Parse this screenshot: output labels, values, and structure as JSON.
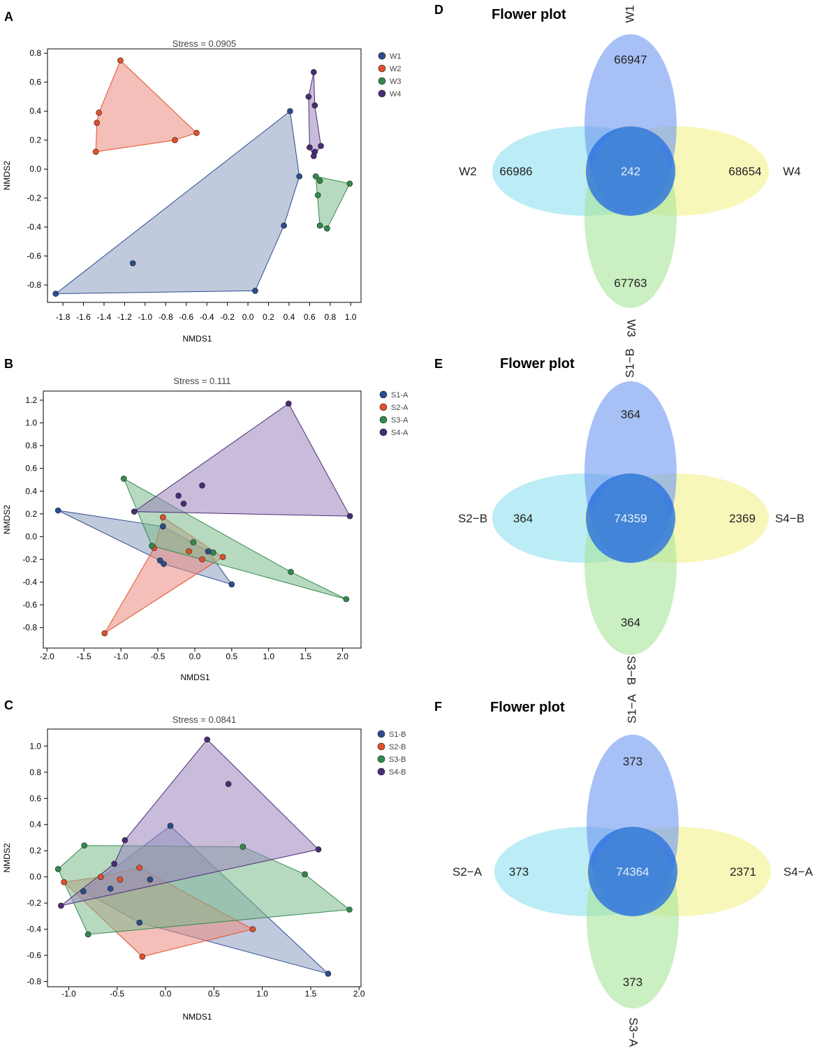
{
  "figure": {
    "panels": [
      "A",
      "B",
      "C",
      "D",
      "E",
      "F"
    ]
  },
  "chart_data": [
    {
      "type": "scatter",
      "panel": "A",
      "title": "Stress = 0.0905",
      "xlabel": "NMDS1",
      "ylabel": "NMDS2",
      "xlim": [
        -1.95,
        1.1
      ],
      "ylim": [
        -0.92,
        0.83
      ],
      "xticks": [
        -1.8,
        -1.6,
        -1.4,
        -1.2,
        -1.0,
        -0.8,
        -0.6,
        -0.4,
        -0.2,
        0.0,
        0.2,
        0.4,
        0.6,
        0.8,
        1.0
      ],
      "xtick_labels": [
        "-1.8",
        "-1.6",
        "-1.4",
        "-1.2",
        "-1.0",
        "-0.8",
        "-0.6",
        "-0.4",
        "-0.2",
        "0.0",
        "0.2",
        "0.4",
        "0.6",
        "0.8",
        "1.0"
      ],
      "yticks": [
        -0.8,
        -0.6,
        -0.4,
        -0.2,
        0.0,
        0.2,
        0.4,
        0.6,
        0.8
      ],
      "ytick_labels": [
        "-0.8",
        "-0.6",
        "-0.4",
        "-0.2",
        "0.0",
        "0.2",
        "0.4",
        "0.6",
        "0.8"
      ],
      "legend_position": "right",
      "series": [
        {
          "name": "W1",
          "color": "#2a4d8f",
          "fill": "#8e9cc1",
          "points": [
            [
              -1.87,
              -0.86
            ],
            [
              -1.12,
              -0.65
            ],
            [
              0.07,
              -0.84
            ],
            [
              0.35,
              -0.39
            ],
            [
              0.41,
              0.4
            ],
            [
              0.5,
              -0.05
            ]
          ],
          "hull": [
            [
              -1.87,
              -0.86
            ],
            [
              0.07,
              -0.84
            ],
            [
              0.35,
              -0.39
            ],
            [
              0.5,
              -0.05
            ],
            [
              0.41,
              0.4
            ]
          ]
        },
        {
          "name": "W2",
          "color": "#e4502a",
          "fill": "#e98b7e",
          "points": [
            [
              -1.24,
              0.75
            ],
            [
              -1.45,
              0.39
            ],
            [
              -1.47,
              0.32
            ],
            [
              -1.48,
              0.12
            ],
            [
              -0.71,
              0.2
            ],
            [
              -0.5,
              0.25
            ]
          ],
          "hull": [
            [
              -1.24,
              0.75
            ],
            [
              -0.5,
              0.25
            ],
            [
              -0.71,
              0.2
            ],
            [
              -1.48,
              0.12
            ],
            [
              -1.47,
              0.32
            ],
            [
              -1.45,
              0.39
            ]
          ]
        },
        {
          "name": "W3",
          "color": "#338a4e",
          "fill": "#7cba8c",
          "points": [
            [
              0.66,
              -0.05
            ],
            [
              0.7,
              -0.08
            ],
            [
              0.99,
              -0.1
            ],
            [
              0.68,
              -0.18
            ],
            [
              0.7,
              -0.39
            ],
            [
              0.77,
              -0.41
            ]
          ],
          "hull": [
            [
              0.66,
              -0.05
            ],
            [
              0.99,
              -0.1
            ],
            [
              0.77,
              -0.41
            ],
            [
              0.7,
              -0.39
            ]
          ]
        },
        {
          "name": "W4",
          "color": "#4a2c77",
          "fill": "#9a85bc",
          "points": [
            [
              0.64,
              0.67
            ],
            [
              0.59,
              0.5
            ],
            [
              0.65,
              0.44
            ],
            [
              0.6,
              0.15
            ],
            [
              0.71,
              0.16
            ],
            [
              0.65,
              0.12
            ],
            [
              0.64,
              0.09
            ]
          ],
          "hull": [
            [
              0.64,
              0.67
            ],
            [
              0.65,
              0.44
            ],
            [
              0.71,
              0.16
            ],
            [
              0.64,
              0.09
            ],
            [
              0.6,
              0.15
            ],
            [
              0.59,
              0.5
            ]
          ]
        }
      ]
    },
    {
      "type": "scatter",
      "panel": "B",
      "title": "Stress = 0.111",
      "xlabel": "NMDS1",
      "ylabel": "NMDS2",
      "xlim": [
        -2.05,
        2.25
      ],
      "ylim": [
        -0.98,
        1.28
      ],
      "xticks": [
        -2.0,
        -1.5,
        -1.0,
        -0.5,
        0.0,
        0.5,
        1.0,
        1.5,
        2.0
      ],
      "xtick_labels": [
        "-2.0",
        "-1.5",
        "-1.0",
        "-0.5",
        "0.0",
        "0.5",
        "1.0",
        "1.5",
        "2.0"
      ],
      "yticks": [
        -0.8,
        -0.6,
        -0.4,
        -0.2,
        0.0,
        0.2,
        0.4,
        0.6,
        0.8,
        1.0,
        1.2
      ],
      "ytick_labels": [
        "-0.8",
        "-0.6",
        "-0.4",
        "-0.2",
        "0.0",
        "0.2",
        "0.4",
        "0.6",
        "0.8",
        "1.0",
        "1.2"
      ],
      "legend_position": "right",
      "series": [
        {
          "name": "S1-A",
          "color": "#2a4d8f",
          "fill": "#8e9cc1",
          "points": [
            [
              -1.85,
              0.23
            ],
            [
              -0.43,
              0.09
            ],
            [
              0.18,
              -0.13
            ],
            [
              -0.47,
              -0.21
            ],
            [
              -0.42,
              -0.24
            ],
            [
              0.5,
              -0.42
            ]
          ],
          "hull": [
            [
              -1.85,
              0.23
            ],
            [
              -0.43,
              0.09
            ],
            [
              0.18,
              -0.13
            ],
            [
              0.5,
              -0.42
            ],
            [
              -0.42,
              -0.24
            ],
            [
              -0.47,
              -0.21
            ]
          ]
        },
        {
          "name": "S2-A",
          "color": "#e4502a",
          "fill": "#e98b7e",
          "points": [
            [
              -0.43,
              0.17
            ],
            [
              -0.55,
              -0.1
            ],
            [
              -0.08,
              -0.13
            ],
            [
              0.1,
              -0.2
            ],
            [
              0.38,
              -0.18
            ],
            [
              -1.22,
              -0.85
            ]
          ],
          "hull": [
            [
              -0.43,
              0.17
            ],
            [
              0.38,
              -0.18
            ],
            [
              -1.22,
              -0.85
            ],
            [
              -0.55,
              -0.1
            ]
          ]
        },
        {
          "name": "S3-A",
          "color": "#338a4e",
          "fill": "#7cba8c",
          "points": [
            [
              -0.96,
              0.51
            ],
            [
              -0.58,
              -0.08
            ],
            [
              -0.02,
              -0.05
            ],
            [
              0.25,
              -0.14
            ],
            [
              1.3,
              -0.31
            ],
            [
              2.05,
              -0.55
            ]
          ],
          "hull": [
            [
              -0.96,
              0.51
            ],
            [
              1.3,
              -0.31
            ],
            [
              2.05,
              -0.55
            ],
            [
              -0.58,
              -0.08
            ]
          ]
        },
        {
          "name": "S4-A",
          "color": "#4a2c77",
          "fill": "#9a85bc",
          "points": [
            [
              1.27,
              1.17
            ],
            [
              0.1,
              0.45
            ],
            [
              -0.22,
              0.36
            ],
            [
              -0.15,
              0.29
            ],
            [
              -0.82,
              0.22
            ],
            [
              2.1,
              0.18
            ]
          ],
          "hull": [
            [
              1.27,
              1.17
            ],
            [
              2.1,
              0.18
            ],
            [
              -0.82,
              0.22
            ]
          ]
        }
      ]
    },
    {
      "type": "scatter",
      "panel": "C",
      "title": "Stress = 0.0841",
      "xlabel": "NMDS1",
      "ylabel": "NMDS2",
      "xlim": [
        -1.22,
        2.02
      ],
      "ylim": [
        -0.84,
        1.13
      ],
      "xticks": [
        -1.0,
        -0.5,
        0.0,
        0.5,
        1.0,
        1.5,
        2.0
      ],
      "xtick_labels": [
        "-1.0",
        "-0.5",
        "0.0",
        "0.5",
        "1.0",
        "1.5",
        "2.0"
      ],
      "yticks": [
        -0.8,
        -0.6,
        -0.4,
        -0.2,
        0.0,
        0.2,
        0.4,
        0.6,
        0.8,
        1.0
      ],
      "ytick_labels": [
        "-0.8",
        "-0.6",
        "-0.4",
        "-0.2",
        "0.0",
        "0.2",
        "0.4",
        "0.6",
        "0.8",
        "1.0"
      ],
      "legend_position": "right",
      "series": [
        {
          "name": "S1-B",
          "color": "#2a4d8f",
          "fill": "#8e9cc1",
          "points": [
            [
              0.05,
              0.39
            ],
            [
              -0.16,
              -0.02
            ],
            [
              -0.57,
              -0.09
            ],
            [
              -0.85,
              -0.11
            ],
            [
              -0.27,
              -0.35
            ],
            [
              1.68,
              -0.74
            ]
          ],
          "hull": [
            [
              0.05,
              0.39
            ],
            [
              1.68,
              -0.74
            ],
            [
              -0.27,
              -0.35
            ],
            [
              -0.85,
              -0.11
            ]
          ]
        },
        {
          "name": "S2-B",
          "color": "#e4502a",
          "fill": "#e98b7e",
          "points": [
            [
              -0.67,
              0.0
            ],
            [
              -0.47,
              -0.02
            ],
            [
              -0.27,
              0.07
            ],
            [
              -1.05,
              -0.04
            ],
            [
              0.9,
              -0.4
            ],
            [
              -0.24,
              -0.61
            ]
          ],
          "hull": [
            [
              -1.05,
              -0.04
            ],
            [
              -0.67,
              0.0
            ],
            [
              -0.27,
              0.07
            ],
            [
              0.9,
              -0.4
            ],
            [
              -0.24,
              -0.61
            ]
          ]
        },
        {
          "name": "S3-B",
          "color": "#338a4e",
          "fill": "#7cba8c",
          "points": [
            [
              -0.84,
              0.24
            ],
            [
              0.8,
              0.23
            ],
            [
              1.44,
              0.02
            ],
            [
              -1.11,
              0.06
            ],
            [
              1.9,
              -0.25
            ],
            [
              -0.8,
              -0.44
            ]
          ],
          "hull": [
            [
              -0.84,
              0.24
            ],
            [
              0.8,
              0.23
            ],
            [
              1.44,
              0.02
            ],
            [
              1.9,
              -0.25
            ],
            [
              -0.8,
              -0.44
            ],
            [
              -1.11,
              0.06
            ]
          ]
        },
        {
          "name": "S4-B",
          "color": "#4a2c77",
          "fill": "#9a85bc",
          "points": [
            [
              0.43,
              1.05
            ],
            [
              0.65,
              0.71
            ],
            [
              -0.42,
              0.28
            ],
            [
              -0.53,
              0.1
            ],
            [
              1.58,
              0.21
            ],
            [
              -1.08,
              -0.22
            ]
          ],
          "hull": [
            [
              0.43,
              1.05
            ],
            [
              1.58,
              0.21
            ],
            [
              -1.08,
              -0.22
            ],
            [
              -0.53,
              0.1
            ],
            [
              -0.42,
              0.28
            ]
          ]
        }
      ]
    },
    {
      "type": "venn",
      "panel": "D",
      "title": "Flower plot",
      "petals": [
        {
          "name": "W1",
          "position": "top",
          "unique": "66947",
          "color": "#6d96f0"
        },
        {
          "name": "W2",
          "position": "left",
          "unique": "66986",
          "color": "#8fe0ef"
        },
        {
          "name": "W4",
          "position": "right",
          "unique": "68654",
          "color": "#f3f28c"
        },
        {
          "name": "W3",
          "position": "bottom",
          "unique": "67763",
          "color": "#a6e49a"
        }
      ],
      "core": "242",
      "core_color": "#2b70e0"
    },
    {
      "type": "venn",
      "panel": "E",
      "title": "Flower plot",
      "petals": [
        {
          "name": "S1−B",
          "position": "top",
          "unique": "364",
          "color": "#6d96f0"
        },
        {
          "name": "S2−B",
          "position": "left",
          "unique": "364",
          "color": "#8fe0ef"
        },
        {
          "name": "S4−B",
          "position": "right",
          "unique": "2369",
          "color": "#f3f28c"
        },
        {
          "name": "S3−B",
          "position": "bottom",
          "unique": "364",
          "color": "#a6e49a"
        }
      ],
      "core": "74359",
      "core_color": "#2b70e0"
    },
    {
      "type": "venn",
      "panel": "F",
      "title": "Flower plot",
      "petals": [
        {
          "name": "S1−A",
          "position": "top",
          "unique": "373",
          "color": "#6d96f0"
        },
        {
          "name": "S2−A",
          "position": "left",
          "unique": "373",
          "color": "#8fe0ef"
        },
        {
          "name": "S4−A",
          "position": "right",
          "unique": "2371",
          "color": "#f3f28c"
        },
        {
          "name": "S3−A",
          "position": "bottom",
          "unique": "373",
          "color": "#a6e49a"
        }
      ],
      "core": "74364",
      "core_color": "#2b70e0"
    }
  ]
}
